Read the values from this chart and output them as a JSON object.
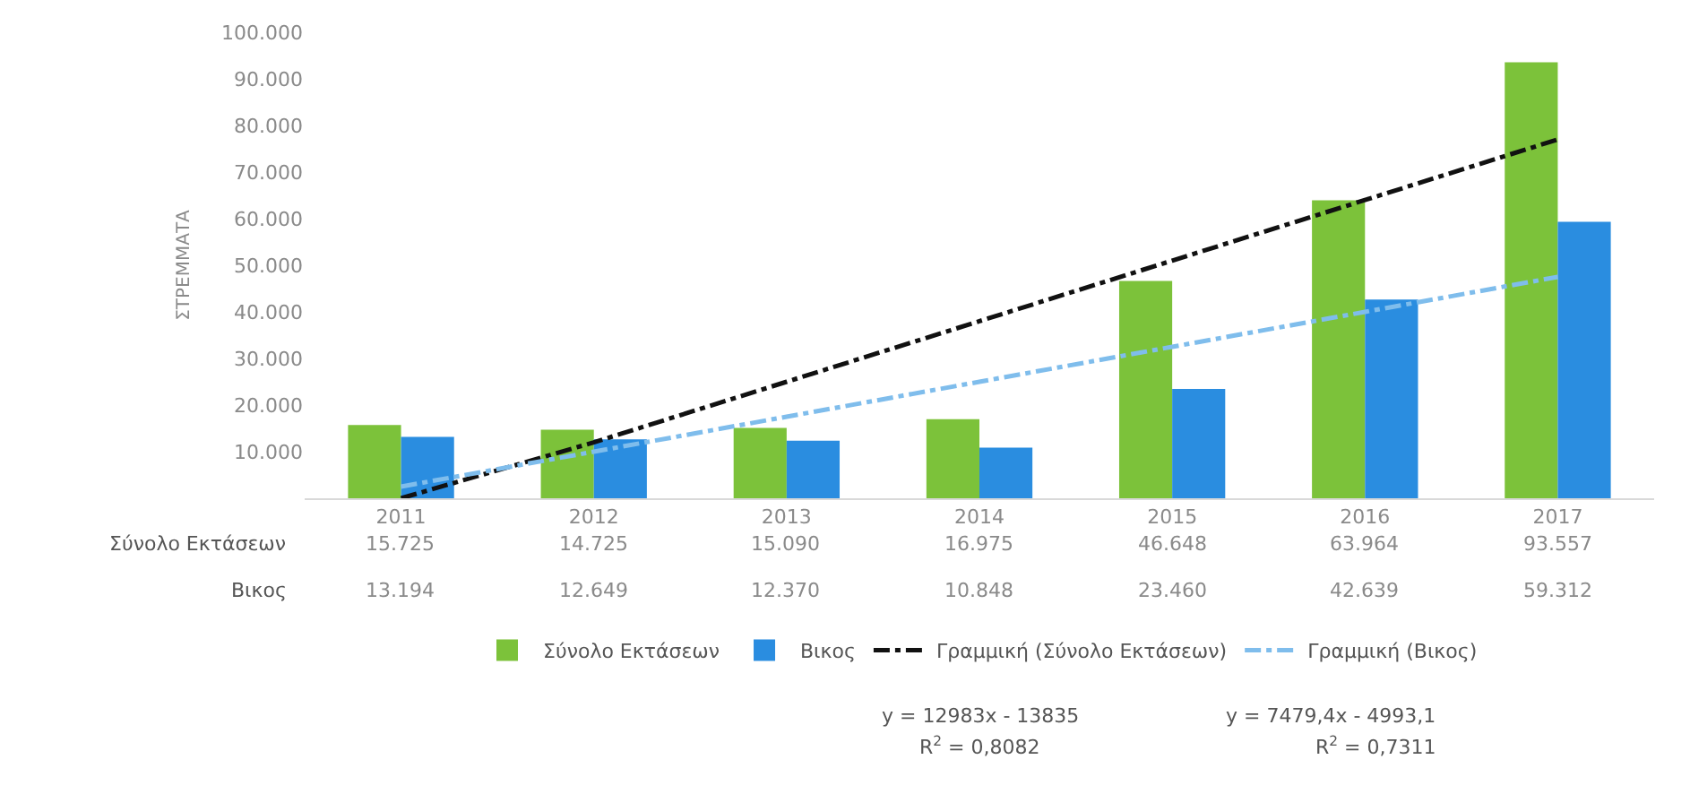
{
  "chart_data": {
    "type": "bar",
    "ylabel": "ΣΤΡΕΜΜΑΤΑ",
    "categories": [
      "2011",
      "2012",
      "2013",
      "2014",
      "2015",
      "2016",
      "2017"
    ],
    "series": [
      {
        "name": "Σύνολο Εκτάσεων",
        "color": "#7cc23a",
        "values": [
          15725,
          14725,
          15090,
          16975,
          46648,
          63964,
          93557
        ],
        "value_labels": [
          "15.725",
          "14.725",
          "15.090",
          "16.975",
          "46.648",
          "63.964",
          "93.557"
        ]
      },
      {
        "name": "Βικος",
        "color": "#2a8de0",
        "values": [
          13194,
          12649,
          12370,
          10848,
          23460,
          42639,
          59312
        ],
        "value_labels": [
          "13.194",
          "12.649",
          "12.370",
          "10.848",
          "23.460",
          "42.639",
          "59.312"
        ]
      },
      {
        "name": "Γραμμική (Σύνολο Εκτάσεων)",
        "type": "line",
        "color": "#111111",
        "line_style": "dashed",
        "values": [
          0,
          12000,
          25000,
          38000,
          51000,
          64000,
          77000
        ]
      },
      {
        "name": "Γραμμική (Βικος)",
        "type": "line",
        "color": "#7fbdec",
        "line_style": "dashed",
        "values": [
          2500,
          10000,
          17500,
          25000,
          32500,
          40000,
          47500
        ]
      }
    ],
    "ylim": [
      0,
      100000
    ],
    "yticks": [
      {
        "value": 10000,
        "label": "10.000"
      },
      {
        "value": 20000,
        "label": "20.000"
      },
      {
        "value": 30000,
        "label": "30.000"
      },
      {
        "value": 40000,
        "label": "40.000"
      },
      {
        "value": 50000,
        "label": "50.000"
      },
      {
        "value": 60000,
        "label": "60.000"
      },
      {
        "value": 70000,
        "label": "70.000"
      },
      {
        "value": 80000,
        "label": "80.000"
      },
      {
        "value": 90000,
        "label": "90.000"
      },
      {
        "value": 100000,
        "label": "100.000"
      }
    ],
    "legend": "bottom",
    "annotations": [
      "y = 12983x - 13835",
      "R$^{2}$ = 0,8082",
      "y = 7479,4x - 4993,1",
      "R$^{2}$ = 0,7311"
    ]
  }
}
